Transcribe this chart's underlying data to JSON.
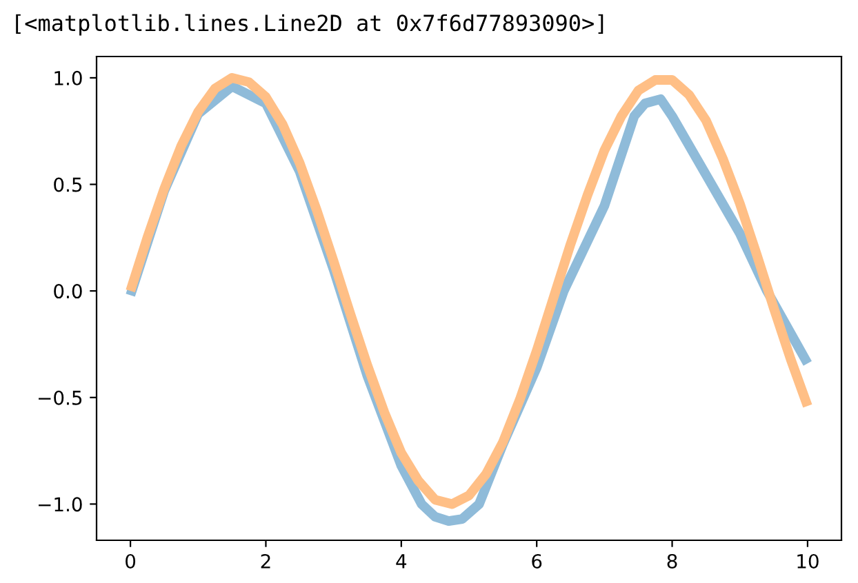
{
  "chart_data": {
    "type": "line",
    "annotations": [
      "[<matplotlib.lines.Line2D at 0x7f6d77893090>]"
    ],
    "xlim": [
      -0.5,
      10.5
    ],
    "ylim": [
      -1.17,
      1.1
    ],
    "xticks": [
      0,
      2,
      4,
      6,
      8,
      10
    ],
    "yticks": [
      {
        "value": -1.0,
        "label": "−1.0"
      },
      {
        "value": -0.5,
        "label": "−0.5"
      },
      {
        "value": 0.0,
        "label": "0.0"
      },
      {
        "value": 0.5,
        "label": "0.5"
      },
      {
        "value": 1.0,
        "label": "1.0"
      }
    ],
    "grid": false,
    "legend": false,
    "marker": "none",
    "line_style": "solid",
    "series": [
      {
        "color": "#8fbbd9",
        "x": [
          0,
          0.5,
          1,
          1.5,
          2,
          2.5,
          3,
          3.5,
          4,
          4.3,
          4.5,
          4.7,
          4.9,
          5.15,
          5.5,
          6,
          6.4,
          7,
          7.44,
          7.6,
          7.83,
          8,
          9,
          9.4,
          10
        ],
        "values": [
          -0.02,
          0.47,
          0.83,
          0.96,
          0.88,
          0.56,
          0.1,
          -0.4,
          -0.82,
          -1.0,
          -1.06,
          -1.08,
          -1.07,
          -1.0,
          -0.72,
          -0.36,
          0.0,
          0.4,
          0.82,
          0.88,
          0.9,
          0.82,
          0.27,
          0.0,
          -0.34
        ]
      },
      {
        "color": "#ffbf86",
        "x": [
          0,
          0.25,
          0.5,
          0.75,
          1,
          1.25,
          1.5,
          1.75,
          2,
          2.25,
          2.5,
          2.75,
          3,
          3.25,
          3.5,
          3.75,
          4,
          4.25,
          4.5,
          4.75,
          5,
          5.25,
          5.5,
          5.75,
          6,
          6.25,
          6.5,
          6.75,
          7,
          7.25,
          7.5,
          7.75,
          8,
          8.25,
          8.5,
          8.75,
          9,
          9.25,
          9.5,
          9.75,
          10
        ],
        "values": [
          0.0,
          0.25,
          0.48,
          0.68,
          0.84,
          0.95,
          1.0,
          0.98,
          0.91,
          0.78,
          0.6,
          0.38,
          0.14,
          -0.11,
          -0.35,
          -0.57,
          -0.76,
          -0.89,
          -0.98,
          -1.0,
          -0.96,
          -0.86,
          -0.71,
          -0.51,
          -0.28,
          -0.03,
          0.22,
          0.45,
          0.66,
          0.82,
          0.94,
          0.99,
          0.99,
          0.92,
          0.8,
          0.62,
          0.41,
          0.17,
          -0.08,
          -0.32,
          -0.54
        ]
      }
    ]
  }
}
